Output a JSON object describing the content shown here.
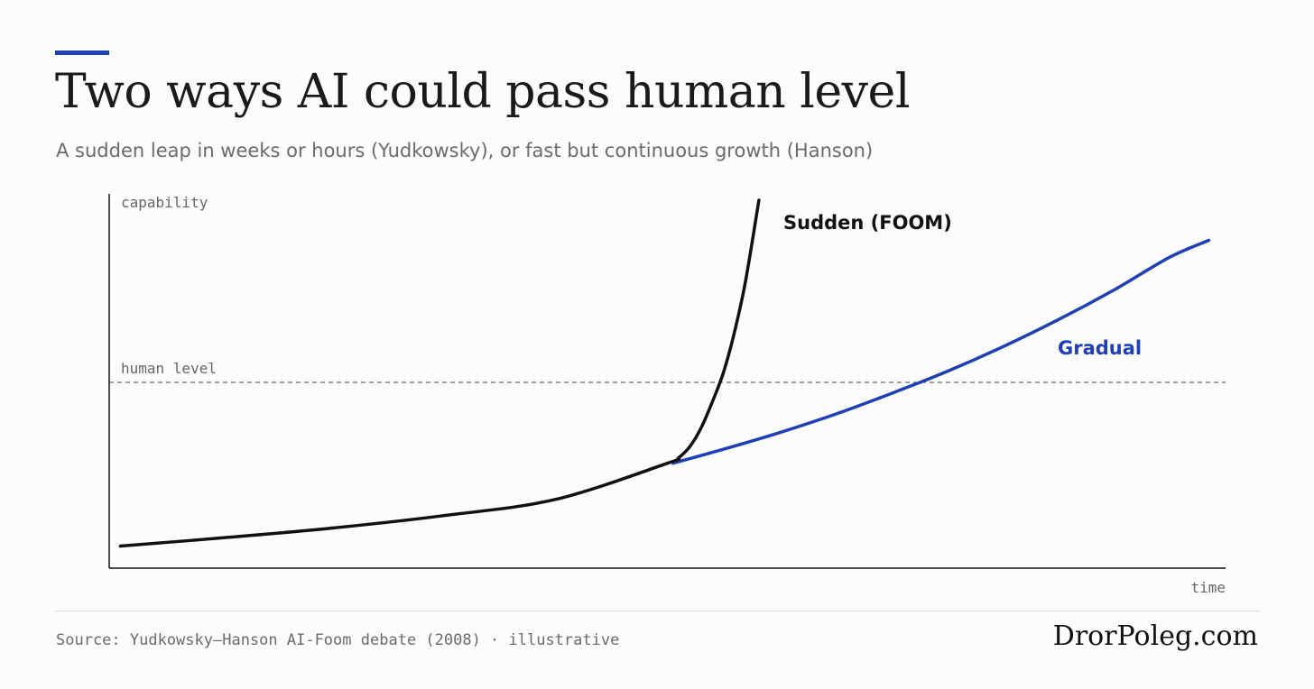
{
  "header": {
    "title": "Two ways AI could pass human level",
    "subtitle": "A sudden leap in weeks or hours (Yudkowsky), or fast but continuous growth (Hanson)"
  },
  "footer": {
    "source": "Source: Yudkowsky–Hanson AI-Foom debate (2008) · illustrative",
    "brand": "DrorPoleg.com"
  },
  "colors": {
    "accent": "#1f3fb6",
    "sudden": "#111111",
    "gradual": "#1f3fb6",
    "threshold": "#444444"
  },
  "chart_data": {
    "type": "line",
    "xlabel": "time",
    "ylabel": "capability",
    "xlim": [
      0,
      100
    ],
    "ylim": [
      0,
      100
    ],
    "grid": false,
    "reference_line": {
      "label": "human level",
      "y": 50.5
    },
    "series": [
      {
        "name": "Sudden (FOOM)",
        "x": [
          1,
          10,
          20,
          30,
          40,
          50,
          51,
          52,
          53,
          54,
          55,
          56,
          57,
          58.2
        ],
        "y": [
          6,
          8.2,
          10.9,
          14.3,
          18.7,
          28.5,
          30,
          33,
          38,
          45,
          53,
          64,
          78,
          100
        ]
      },
      {
        "name": "Gradual",
        "x": [
          50.5,
          55,
          60,
          65,
          70,
          75,
          80,
          85,
          90,
          95,
          98.5
        ],
        "y": [
          28.5,
          32.3,
          36.8,
          41.8,
          47.4,
          53.4,
          60.1,
          67.5,
          75.6,
          84.5,
          89.1
        ]
      }
    ]
  }
}
